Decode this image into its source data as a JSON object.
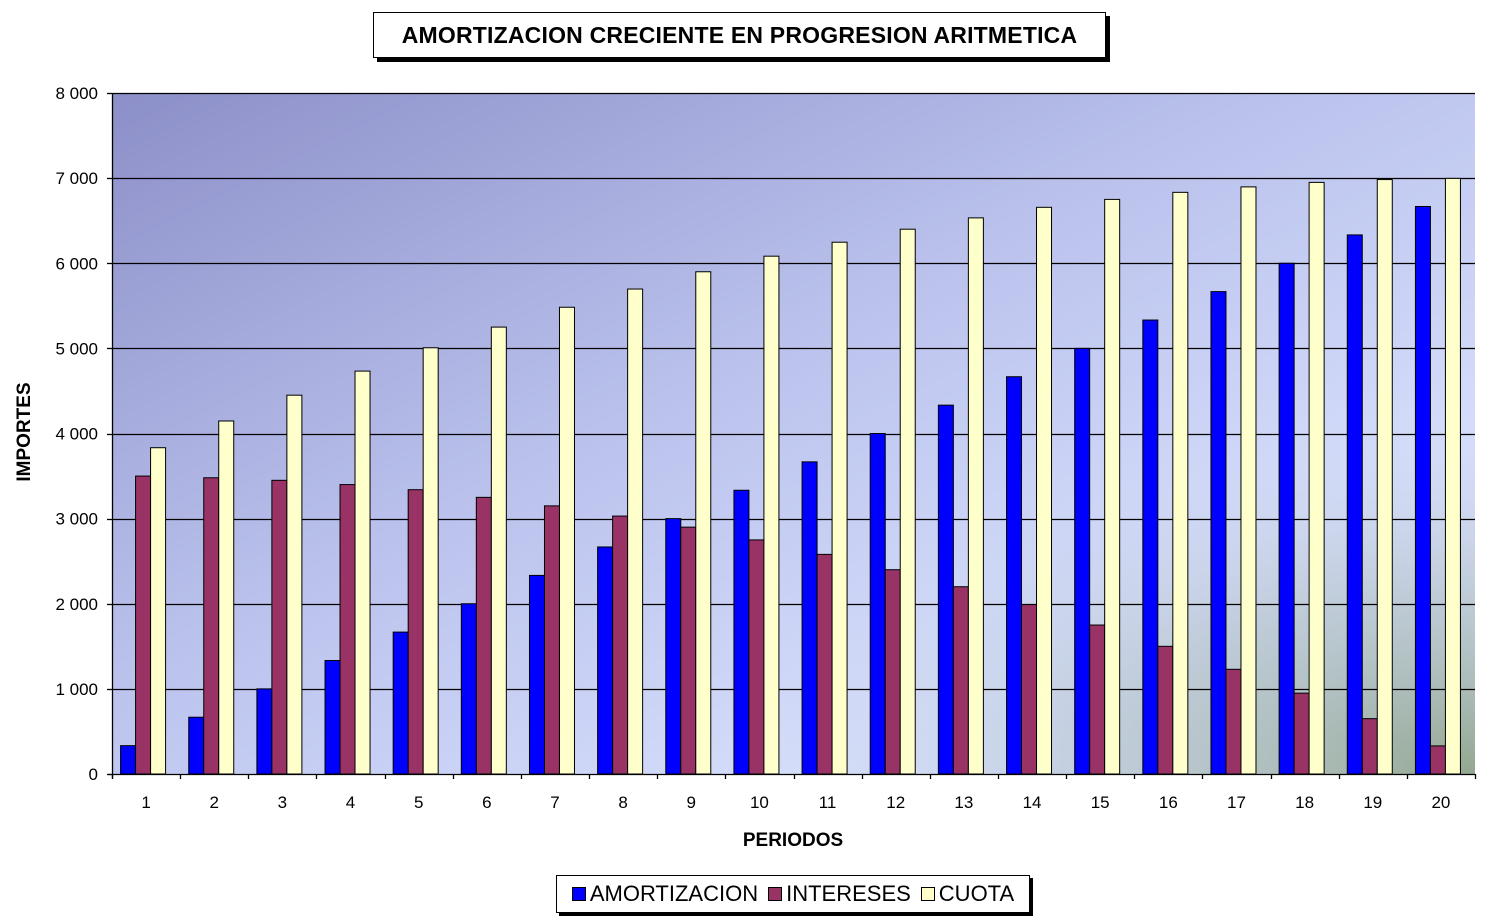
{
  "chart_data": {
    "type": "bar",
    "title": "AMORTIZACION CRECIENTE EN PROGRESION ARITMETICA",
    "xlabel": "PERIODOS",
    "ylabel": "IMPORTES",
    "ylim": [
      0,
      8000
    ],
    "yticks": [
      0,
      1000,
      2000,
      3000,
      4000,
      5000,
      6000,
      7000,
      8000
    ],
    "ytick_labels": [
      "0",
      "1 000",
      "2 000",
      "3 000",
      "4 000",
      "5 000",
      "6 000",
      "7 000",
      "8 000"
    ],
    "grid": true,
    "legend_position": "bottom",
    "categories": [
      "1",
      "2",
      "3",
      "4",
      "5",
      "6",
      "7",
      "8",
      "9",
      "10",
      "11",
      "12",
      "13",
      "14",
      "15",
      "16",
      "17",
      "18",
      "19",
      "20"
    ],
    "series": [
      {
        "name": "AMORTIZACION",
        "color": "#0000ff",
        "values": [
          333,
          667,
          1000,
          1333,
          1667,
          2000,
          2333,
          2667,
          3000,
          3333,
          3667,
          4000,
          4333,
          4667,
          5000,
          5333,
          5667,
          6000,
          6333,
          6667
        ]
      },
      {
        "name": "INTERESES",
        "color": "#993366",
        "values": [
          3500,
          3480,
          3450,
          3400,
          3340,
          3250,
          3150,
          3030,
          2900,
          2750,
          2580,
          2400,
          2200,
          1990,
          1750,
          1500,
          1230,
          950,
          650,
          330
        ]
      },
      {
        "name": "CUOTA",
        "color": "#ffffcc",
        "values": [
          3833,
          4147,
          4450,
          4733,
          5007,
          5250,
          5483,
          5697,
          5900,
          6083,
          6247,
          6400,
          6533,
          6657,
          6750,
          6833,
          6897,
          6950,
          6983,
          6997
        ]
      }
    ]
  }
}
